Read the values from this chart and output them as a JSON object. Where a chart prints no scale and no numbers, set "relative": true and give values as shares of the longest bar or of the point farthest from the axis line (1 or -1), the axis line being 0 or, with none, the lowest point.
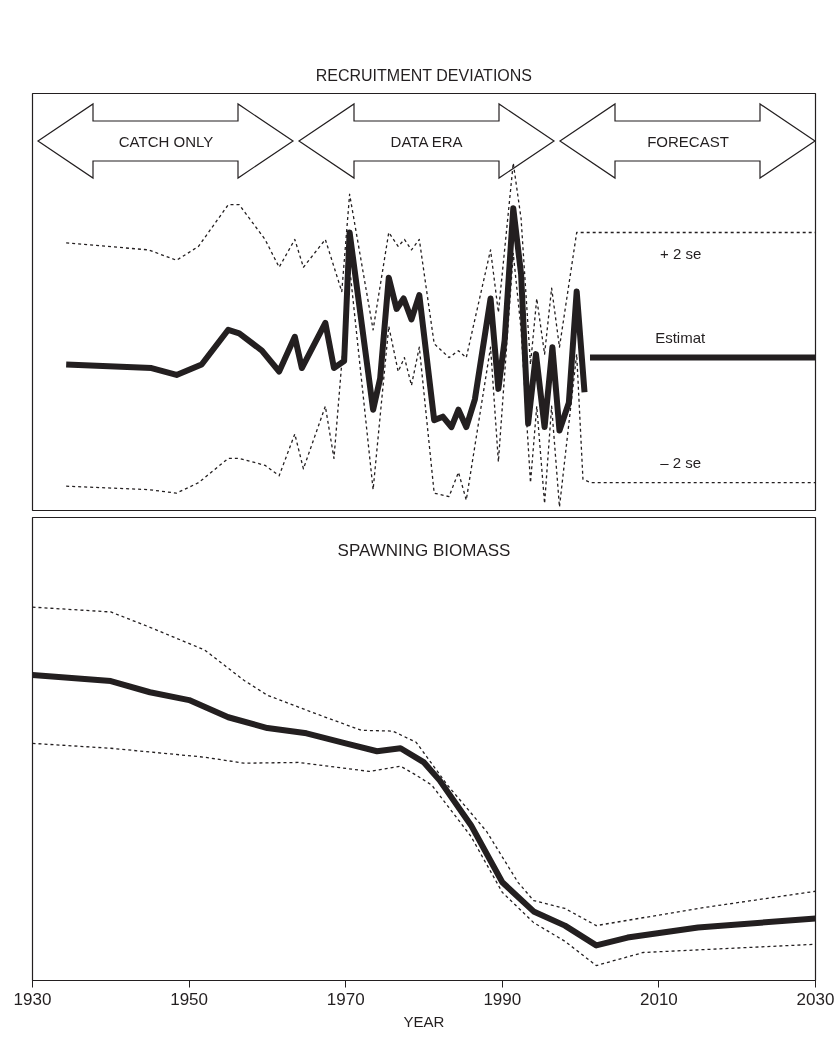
{
  "chart_data": [
    {
      "type": "line",
      "title": "RECRUITMENT DEVIATIONS",
      "relative": true,
      "xlim": [
        1930,
        2030
      ],
      "tick_labels": false,
      "grid": false,
      "annotations": [
        "CATCH ONLY",
        "DATA ERA",
        "FORECAST"
      ],
      "series": [
        {
          "name": "+ 2 se",
          "color": "#231f20",
          "line_style": "dotted",
          "x": [
            1934.3,
            1944.8,
            1948.4,
            1951.2,
            1955,
            1956.4,
            1959.7,
            1961.5,
            1963.5,
            1964.6,
            1967.4,
            1969.5,
            1970.5,
            1973.5,
            1975.5,
            1976.7,
            1977.5,
            1978.4,
            1979.4,
            1981.3,
            1983.2,
            1984.4,
            1985.4,
            1988.5,
            1989.5,
            1991.4,
            1992.4,
            1993.6,
            1994.4,
            1995.4,
            1996.3,
            1997.3,
            1999.5,
            2001.3,
            2030
          ],
          "values": [
            0.77,
            0.75,
            0.72,
            0.76,
            0.88,
            0.88,
            0.78,
            0.7,
            0.78,
            0.7,
            0.78,
            0.63,
            0.91,
            0.52,
            0.8,
            0.76,
            0.78,
            0.75,
            0.78,
            0.48,
            0.44,
            0.46,
            0.44,
            0.75,
            0.57,
            1.0,
            0.84,
            0.42,
            0.61,
            0.45,
            0.64,
            0.47,
            0.8,
            0.8,
            0.8
          ]
        },
        {
          "name": "Estimat",
          "color": "#231f20",
          "line_style": "solid",
          "x": [
            1934.3,
            1945.2,
            1948.4,
            1951.6,
            1955,
            1956.4,
            1959.3,
            1961.5,
            1963.5,
            1964.4,
            1967.4,
            1968.5,
            1969.8,
            1970.5,
            1973.5,
            1974.4,
            1975.5,
            1976.5,
            1977.4,
            1978.4,
            1979.4,
            1981.3,
            1982.4,
            1983.5,
            1984.4,
            1985.4,
            1986.5,
            1988.5,
            1989.5,
            1990.3,
            1991.4,
            1992.4,
            1993.3,
            1994.3,
            1995.4,
            1996.4,
            1997.3,
            1998.5,
            1999.5,
            2000.5,
            2000.9,
            2001.2,
            2030
          ],
          "values": [
            0.42,
            0.41,
            0.39,
            0.42,
            0.52,
            0.51,
            0.46,
            0.4,
            0.5,
            0.41,
            0.54,
            0.41,
            0.43,
            0.8,
            0.29,
            0.38,
            0.67,
            0.58,
            0.61,
            0.55,
            0.62,
            0.26,
            0.27,
            0.24,
            0.29,
            0.24,
            0.32,
            0.61,
            0.35,
            0.49,
            0.87,
            0.68,
            0.25,
            0.45,
            0.24,
            0.47,
            0.23,
            0.31,
            0.63,
            0.34,
            null,
            0.44,
            0.44
          ]
        },
        {
          "name": "– 2 se",
          "color": "#231f20",
          "line_style": "dotted",
          "x": [
            1934.3,
            1944.8,
            1948.4,
            1951.2,
            1955,
            1956.4,
            1959.7,
            1961.5,
            1963.5,
            1964.6,
            1967.4,
            1968.5,
            1970.5,
            1973.5,
            1975.5,
            1976.7,
            1977.5,
            1978.4,
            1979.4,
            1981.3,
            1983.2,
            1984.4,
            1985.4,
            1988.5,
            1989.5,
            1991.4,
            1992.4,
            1993.6,
            1994.4,
            1995.4,
            1996.3,
            1997.3,
            1999.5,
            2000.3,
            2001.3,
            2030
          ],
          "values": [
            0.07,
            0.06,
            0.05,
            0.08,
            0.15,
            0.15,
            0.13,
            0.1,
            0.22,
            0.12,
            0.3,
            0.15,
            0.7,
            0.06,
            0.53,
            0.4,
            0.44,
            0.36,
            0.47,
            0.05,
            0.04,
            0.11,
            0.03,
            0.47,
            0.14,
            0.74,
            0.52,
            0.08,
            0.3,
            0.02,
            0.3,
            0.01,
            0.45,
            0.09,
            0.08,
            0.08
          ]
        }
      ]
    },
    {
      "type": "line",
      "title": "SPAWNING BIOMASS",
      "xlabel": "YEAR",
      "relative": true,
      "xlim": [
        1930,
        2030
      ],
      "xticks": [
        1930,
        1950,
        1970,
        1990,
        2010,
        2030
      ],
      "tick_labels": "x",
      "grid": false,
      "series": [
        {
          "color": "#231f20",
          "line_style": "dotted",
          "x": [
            1930,
            1940,
            1945,
            1952,
            1957,
            1960,
            1966,
            1972,
            1976,
            1979,
            1983,
            1988,
            1992,
            1994,
            1998,
            2002,
            2015,
            2030
          ],
          "values": [
            1.0,
            0.987,
            0.946,
            0.885,
            0.804,
            0.764,
            0.716,
            0.67,
            0.668,
            0.638,
            0.523,
            0.399,
            0.263,
            0.214,
            0.193,
            0.147,
            0.193,
            0.239
          ]
        },
        {
          "color": "#231f20",
          "line_style": "solid",
          "x": [
            1930,
            1940,
            1945,
            1950,
            1955,
            1960,
            1965,
            1970,
            1974,
            1977,
            1980,
            1982,
            1986,
            1990,
            1994,
            1998,
            2002,
            2006,
            2015,
            2030
          ],
          "values": [
            0.818,
            0.802,
            0.772,
            0.751,
            0.705,
            0.676,
            0.662,
            0.635,
            0.614,
            0.622,
            0.584,
            0.536,
            0.416,
            0.263,
            0.185,
            0.147,
            0.094,
            0.115,
            0.142,
            0.166
          ]
        },
        {
          "color": "#231f20",
          "line_style": "dotted",
          "x": [
            1930,
            1940,
            1952,
            1957,
            1964,
            1973,
            1977,
            1979,
            1981,
            1986,
            1990,
            1994,
            1998,
            2002,
            2008,
            2030
          ],
          "values": [
            0.635,
            0.622,
            0.598,
            0.582,
            0.584,
            0.56,
            0.574,
            0.55,
            0.523,
            0.386,
            0.236,
            0.155,
            0.105,
            0.04,
            0.075,
            0.097
          ]
        }
      ]
    }
  ]
}
